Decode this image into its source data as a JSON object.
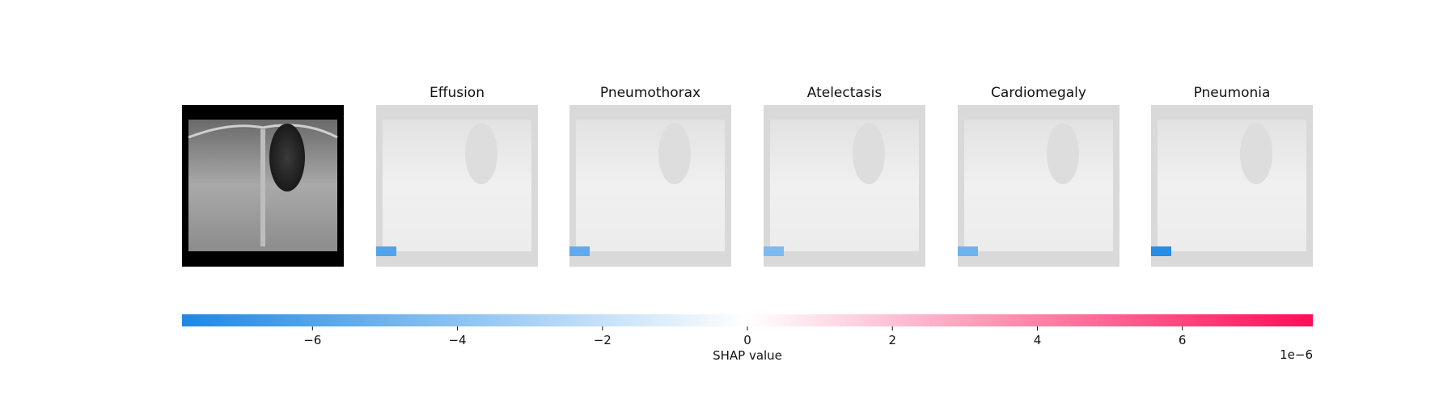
{
  "chart_data": {
    "type": "heatmap",
    "panels": [
      {
        "title": ""
      },
      {
        "title": "Effusion",
        "min_block": -6.0
      },
      {
        "title": "Pneumothorax",
        "min_block": -5.5
      },
      {
        "title": "Atelectasis",
        "min_block": -4.5
      },
      {
        "title": "Cardiomegaly",
        "min_block": -5.0
      },
      {
        "title": "Pneumonia",
        "min_block": -7.5
      }
    ],
    "colorbar": {
      "xlabel": "SHAP value",
      "range": [
        -7.8,
        7.8
      ],
      "ticks": [
        -6,
        -4,
        -2,
        0,
        2,
        4,
        6
      ],
      "tick_labels": [
        "−6",
        "−4",
        "−2",
        "0",
        "2",
        "4",
        "6"
      ],
      "offset_label": "1e−6",
      "negative_color": "#1e88e5",
      "positive_color": "#ff0d57"
    }
  }
}
